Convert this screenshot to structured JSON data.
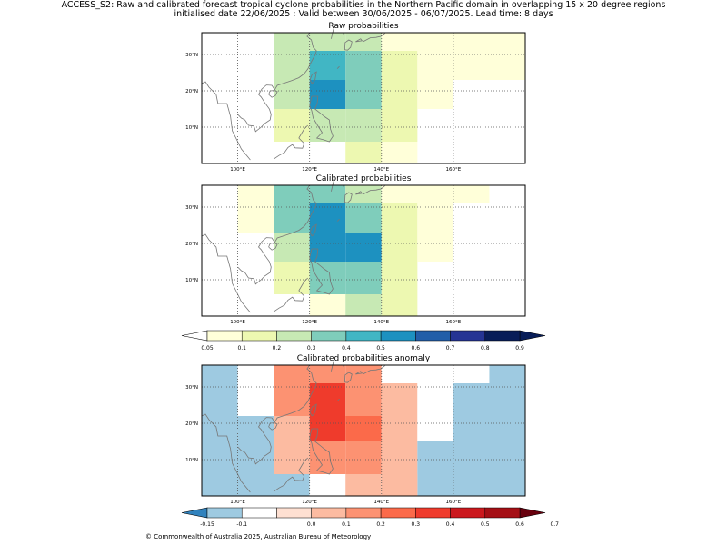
{
  "header": {
    "line1": "ACCESS_S2: Raw and calibrated forecast tropical cyclone probabilities in the Northern Pacific domain in overlapping 15 x 20 degree regions",
    "line2": "initialised date 22/06/2025 :  Valid between 30/06/2025 - 06/07/2025. Lead time: 8 days"
  },
  "footer": {
    "copyright": "© Commonwealth of Australia 2025, Australian Bureau of Meteorology"
  },
  "chart_data": [
    {
      "type": "heatmap",
      "title": "Raw probabilities",
      "x_ticks": [
        "100°E",
        "120°E",
        "140°E",
        "160°E"
      ],
      "y_ticks": [
        "30°N",
        "20°N",
        "10°N"
      ],
      "lon_range": [
        90,
        180
      ],
      "lat_range": [
        0,
        36
      ],
      "cells": [
        {
          "lon": [
            110,
            120
          ],
          "lat": [
            31,
            36
          ],
          "value": 0.25
        },
        {
          "lon": [
            120,
            130
          ],
          "lat": [
            31,
            36
          ],
          "value": 0.25
        },
        {
          "lon": [
            130,
            140
          ],
          "lat": [
            31,
            36
          ],
          "value": 0.25
        },
        {
          "lon": [
            140,
            180
          ],
          "lat": [
            31,
            36
          ],
          "value": 0.07
        },
        {
          "lon": [
            110,
            120
          ],
          "lat": [
            23,
            31
          ],
          "value": 0.25
        },
        {
          "lon": [
            120,
            130
          ],
          "lat": [
            23,
            31
          ],
          "value": 0.45
        },
        {
          "lon": [
            130,
            140
          ],
          "lat": [
            23,
            31
          ],
          "value": 0.35
        },
        {
          "lon": [
            140,
            150
          ],
          "lat": [
            23,
            31
          ],
          "value": 0.15
        },
        {
          "lon": [
            150,
            180
          ],
          "lat": [
            23,
            31
          ],
          "value": 0.07
        },
        {
          "lon": [
            110,
            120
          ],
          "lat": [
            15,
            23
          ],
          "value": 0.25
        },
        {
          "lon": [
            120,
            130
          ],
          "lat": [
            15,
            23
          ],
          "value": 0.55
        },
        {
          "lon": [
            130,
            140
          ],
          "lat": [
            15,
            23
          ],
          "value": 0.35
        },
        {
          "lon": [
            140,
            150
          ],
          "lat": [
            15,
            23
          ],
          "value": 0.15
        },
        {
          "lon": [
            150,
            160
          ],
          "lat": [
            15,
            23
          ],
          "value": 0.07
        },
        {
          "lon": [
            110,
            120
          ],
          "lat": [
            6,
            15
          ],
          "value": 0.15
        },
        {
          "lon": [
            120,
            130
          ],
          "lat": [
            6,
            15
          ],
          "value": 0.25
        },
        {
          "lon": [
            130,
            140
          ],
          "lat": [
            6,
            15
          ],
          "value": 0.25
        },
        {
          "lon": [
            140,
            150
          ],
          "lat": [
            6,
            15
          ],
          "value": 0.15
        },
        {
          "lon": [
            130,
            140
          ],
          "lat": [
            0,
            6
          ],
          "value": 0.15
        },
        {
          "lon": [
            140,
            150
          ],
          "lat": [
            0,
            6
          ],
          "value": 0.07
        }
      ]
    },
    {
      "type": "heatmap",
      "title": "Calibrated probabilities",
      "x_ticks": [
        "100°E",
        "120°E",
        "140°E",
        "160°E"
      ],
      "y_ticks": [
        "30°N",
        "20°N",
        "10°N"
      ],
      "lon_range": [
        90,
        180
      ],
      "lat_range": [
        0,
        36
      ],
      "cells": [
        {
          "lon": [
            100,
            110
          ],
          "lat": [
            31,
            36
          ],
          "value": 0.07
        },
        {
          "lon": [
            110,
            120
          ],
          "lat": [
            31,
            36
          ],
          "value": 0.35
        },
        {
          "lon": [
            120,
            130
          ],
          "lat": [
            31,
            36
          ],
          "value": 0.35
        },
        {
          "lon": [
            130,
            140
          ],
          "lat": [
            31,
            36
          ],
          "value": 0.25
        },
        {
          "lon": [
            140,
            170
          ],
          "lat": [
            31,
            36
          ],
          "value": 0.07
        },
        {
          "lon": [
            100,
            110
          ],
          "lat": [
            23,
            31
          ],
          "value": 0.07
        },
        {
          "lon": [
            110,
            120
          ],
          "lat": [
            23,
            31
          ],
          "value": 0.35
        },
        {
          "lon": [
            120,
            130
          ],
          "lat": [
            23,
            31
          ],
          "value": 0.55
        },
        {
          "lon": [
            130,
            140
          ],
          "lat": [
            23,
            31
          ],
          "value": 0.35
        },
        {
          "lon": [
            140,
            150
          ],
          "lat": [
            23,
            31
          ],
          "value": 0.15
        },
        {
          "lon": [
            150,
            160
          ],
          "lat": [
            23,
            31
          ],
          "value": 0.07
        },
        {
          "lon": [
            110,
            120
          ],
          "lat": [
            15,
            23
          ],
          "value": 0.25
        },
        {
          "lon": [
            120,
            130
          ],
          "lat": [
            15,
            23
          ],
          "value": 0.55
        },
        {
          "lon": [
            130,
            140
          ],
          "lat": [
            15,
            23
          ],
          "value": 0.55
        },
        {
          "lon": [
            140,
            150
          ],
          "lat": [
            15,
            23
          ],
          "value": 0.15
        },
        {
          "lon": [
            150,
            160
          ],
          "lat": [
            15,
            23
          ],
          "value": 0.07
        },
        {
          "lon": [
            110,
            120
          ],
          "lat": [
            6,
            15
          ],
          "value": 0.15
        },
        {
          "lon": [
            120,
            130
          ],
          "lat": [
            6,
            15
          ],
          "value": 0.35
        },
        {
          "lon": [
            130,
            140
          ],
          "lat": [
            6,
            15
          ],
          "value": 0.35
        },
        {
          "lon": [
            140,
            150
          ],
          "lat": [
            6,
            15
          ],
          "value": 0.15
        },
        {
          "lon": [
            120,
            130
          ],
          "lat": [
            0,
            6
          ],
          "value": 0.07
        },
        {
          "lon": [
            130,
            140
          ],
          "lat": [
            0,
            6
          ],
          "value": 0.25
        },
        {
          "lon": [
            140,
            150
          ],
          "lat": [
            0,
            6
          ],
          "value": 0.15
        }
      ]
    },
    {
      "type": "heatmap",
      "title": "Calibrated probabilities anomaly",
      "x_ticks": [
        "100°E",
        "120°E",
        "140°E",
        "160°E"
      ],
      "y_ticks": [
        "30°N",
        "20°N",
        "10°N"
      ],
      "lon_range": [
        90,
        180
      ],
      "lat_range": [
        0,
        36
      ],
      "cells": [
        {
          "lon": [
            90,
            100
          ],
          "lat": [
            0,
            36
          ],
          "value": -0.12
        },
        {
          "lon": [
            100,
            110
          ],
          "lat": [
            31,
            36
          ],
          "value": -0.08
        },
        {
          "lon": [
            100,
            110
          ],
          "lat": [
            22,
            31
          ],
          "value": -0.08
        },
        {
          "lon": [
            100,
            110
          ],
          "lat": [
            0,
            22
          ],
          "value": -0.12
        },
        {
          "lon": [
            110,
            120
          ],
          "lat": [
            31,
            36
          ],
          "value": 0.15
        },
        {
          "lon": [
            120,
            130
          ],
          "lat": [
            31,
            36
          ],
          "value": 0.15
        },
        {
          "lon": [
            130,
            140
          ],
          "lat": [
            31,
            36
          ],
          "value": 0.15
        },
        {
          "lon": [
            140,
            170
          ],
          "lat": [
            31,
            36
          ],
          "value": -0.08
        },
        {
          "lon": [
            170,
            180
          ],
          "lat": [
            31,
            36
          ],
          "value": -0.12
        },
        {
          "lon": [
            110,
            120
          ],
          "lat": [
            22,
            31
          ],
          "value": 0.15
        },
        {
          "lon": [
            120,
            130
          ],
          "lat": [
            22,
            31
          ],
          "value": 0.35
        },
        {
          "lon": [
            130,
            140
          ],
          "lat": [
            22,
            31
          ],
          "value": 0.15
        },
        {
          "lon": [
            140,
            150
          ],
          "lat": [
            22,
            31
          ],
          "value": 0.0
        },
        {
          "lon": [
            150,
            160
          ],
          "lat": [
            22,
            31
          ],
          "value": -0.08
        },
        {
          "lon": [
            160,
            180
          ],
          "lat": [
            22,
            31
          ],
          "value": -0.12
        },
        {
          "lon": [
            110,
            120
          ],
          "lat": [
            15,
            22
          ],
          "value": 0.05
        },
        {
          "lon": [
            120,
            130
          ],
          "lat": [
            15,
            22
          ],
          "value": 0.35
        },
        {
          "lon": [
            130,
            140
          ],
          "lat": [
            15,
            22
          ],
          "value": 0.25
        },
        {
          "lon": [
            140,
            150
          ],
          "lat": [
            15,
            22
          ],
          "value": 0.0
        },
        {
          "lon": [
            150,
            160
          ],
          "lat": [
            15,
            22
          ],
          "value": -0.08
        },
        {
          "lon": [
            160,
            180
          ],
          "lat": [
            15,
            22
          ],
          "value": -0.12
        },
        {
          "lon": [
            110,
            120
          ],
          "lat": [
            6,
            15
          ],
          "value": 0.0
        },
        {
          "lon": [
            120,
            130
          ],
          "lat": [
            6,
            15
          ],
          "value": 0.15
        },
        {
          "lon": [
            130,
            140
          ],
          "lat": [
            6,
            15
          ],
          "value": 0.15
        },
        {
          "lon": [
            140,
            150
          ],
          "lat": [
            6,
            15
          ],
          "value": 0.0
        },
        {
          "lon": [
            150,
            180
          ],
          "lat": [
            0,
            15
          ],
          "value": -0.12
        },
        {
          "lon": [
            110,
            120
          ],
          "lat": [
            0,
            6
          ],
          "value": -0.12
        },
        {
          "lon": [
            120,
            130
          ],
          "lat": [
            0,
            6
          ],
          "value": -0.08
        },
        {
          "lon": [
            130,
            140
          ],
          "lat": [
            0,
            6
          ],
          "value": 0.05
        },
        {
          "lon": [
            140,
            150
          ],
          "lat": [
            0,
            6
          ],
          "value": 0.0
        }
      ]
    }
  ],
  "colorbars": [
    {
      "type": "colorbar",
      "labels": [
        "0.05",
        "0.1",
        "0.2",
        "0.3",
        "0.4",
        "0.5",
        "0.6",
        "0.7",
        "0.8",
        "0.9"
      ],
      "boundaries": [
        0.05,
        0.1,
        0.2,
        0.3,
        0.4,
        0.5,
        0.6,
        0.7,
        0.8,
        0.9
      ],
      "under_color": "#ffffff",
      "over_color": "#081d58",
      "colors": [
        "#ffffd9",
        "#edf8b1",
        "#c7e9b4",
        "#7fcdbb",
        "#41b6c4",
        "#1d91c0",
        "#225ea8",
        "#253494",
        "#081d58"
      ]
    },
    {
      "type": "colorbar",
      "labels": [
        "-0.15",
        "-0.1",
        "0.0",
        "0.1",
        "0.2",
        "0.3",
        "0.4",
        "0.5",
        "0.6",
        "0.7"
      ],
      "boundaries": [
        -0.15,
        -0.1,
        -0.05,
        0.0,
        0.1,
        0.2,
        0.3,
        0.4,
        0.5,
        0.6,
        0.7
      ],
      "under_color": "#3182bd",
      "over_color": "#67000d",
      "colors": [
        "#9ecae1",
        "#ffffff",
        "#fee0d2",
        "#fcbba1",
        "#fc9272",
        "#fb6a4a",
        "#ef3b2c",
        "#cb181d",
        "#a50f15"
      ]
    }
  ]
}
